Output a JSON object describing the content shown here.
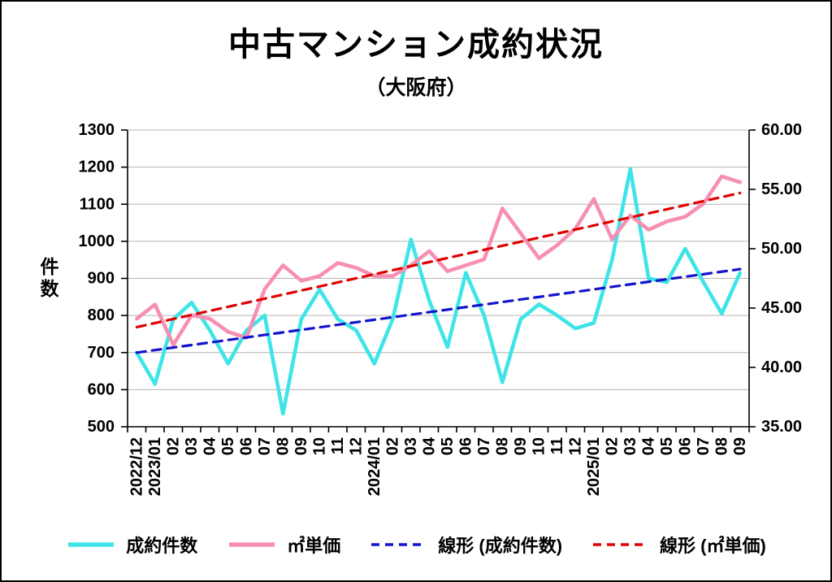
{
  "chart_data": {
    "type": "line",
    "title": "中古マンション成約状況",
    "subtitle": "（大阪府）",
    "grid": true,
    "grid_color": "#b4b4b4",
    "legend_position": "bottom",
    "categories": [
      "2022/12",
      "2023/01",
      "02",
      "03",
      "04",
      "05",
      "06",
      "07",
      "08",
      "09",
      "10",
      "11",
      "12",
      "2024/01",
      "02",
      "03",
      "04",
      "05",
      "06",
      "07",
      "08",
      "09",
      "10",
      "11",
      "12",
      "2025/01",
      "02",
      "03",
      "04",
      "05",
      "06",
      "07",
      "08",
      "09"
    ],
    "left_axis": {
      "label": "件数",
      "min": 500,
      "max": 1300,
      "ticks": [
        500,
        600,
        700,
        800,
        900,
        1000,
        1100,
        1200,
        1300
      ],
      "tick_labels": [
        "500",
        "600",
        "700",
        "800",
        "900",
        "1000",
        "1100",
        "1200",
        "1300"
      ]
    },
    "right_axis": {
      "min": 35,
      "max": 60,
      "ticks": [
        35,
        40,
        45,
        50,
        55,
        60
      ],
      "tick_labels": [
        "35.00",
        "40.00",
        "45.00",
        "50.00",
        "55.00",
        "60.00"
      ]
    },
    "series": [
      {
        "name": "成約件数",
        "axis": "left",
        "style": "solid",
        "color": "#3fe4e8",
        "values": [
          700,
          615,
          790,
          835,
          760,
          670,
          760,
          800,
          535,
          790,
          870,
          790,
          760,
          670,
          790,
          1005,
          840,
          715,
          915,
          800,
          620,
          790,
          830,
          800,
          765,
          780,
          950,
          1195,
          900,
          890,
          980,
          890,
          805,
          915
        ]
      },
      {
        "name": "㎡単価",
        "axis": "right",
        "style": "solid",
        "color": "#f78fb2",
        "values": [
          44.1,
          45.3,
          41.9,
          44.4,
          44.1,
          43.0,
          42.5,
          46.6,
          48.6,
          47.3,
          47.7,
          48.8,
          48.4,
          47.7,
          47.7,
          48.6,
          49.8,
          48.1,
          48.6,
          49.1,
          53.4,
          51.3,
          49.2,
          50.3,
          51.7,
          54.2,
          50.8,
          52.8,
          51.6,
          52.3,
          52.7,
          53.8,
          56.1,
          55.6
        ]
      },
      {
        "name": "線形 (成約件数)",
        "axis": "left",
        "style": "dashed",
        "trend": true,
        "color": "#1414cc",
        "values": [
          700,
          925
        ]
      },
      {
        "name": "線形 (㎡単価)",
        "axis": "right",
        "style": "dashed",
        "trend": true,
        "color": "#e00000",
        "values": [
          43.4,
          54.7
        ]
      }
    ]
  }
}
